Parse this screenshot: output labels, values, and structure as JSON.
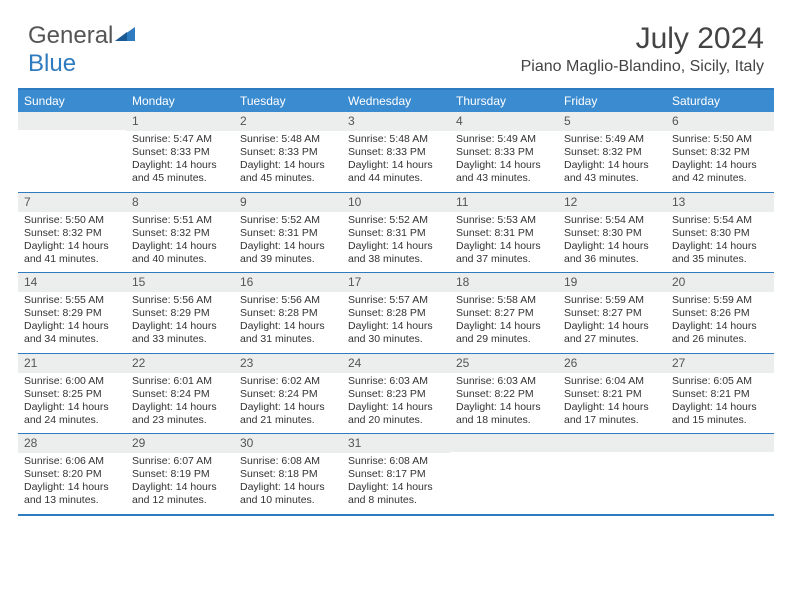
{
  "brand": {
    "part1": "General",
    "part2": "Blue"
  },
  "title": {
    "month": "July 2024",
    "location": "Piano Maglio-Blandino, Sicily, Italy"
  },
  "colors": {
    "accent": "#3b8bd0",
    "border": "#2f7bbf",
    "daybg": "#eceded"
  },
  "dayHeaders": [
    "Sunday",
    "Monday",
    "Tuesday",
    "Wednesday",
    "Thursday",
    "Friday",
    "Saturday"
  ],
  "weeks": [
    [
      {
        "n": "",
        "lines": []
      },
      {
        "n": "1",
        "lines": [
          "Sunrise: 5:47 AM",
          "Sunset: 8:33 PM",
          "Daylight: 14 hours",
          "and 45 minutes."
        ]
      },
      {
        "n": "2",
        "lines": [
          "Sunrise: 5:48 AM",
          "Sunset: 8:33 PM",
          "Daylight: 14 hours",
          "and 45 minutes."
        ]
      },
      {
        "n": "3",
        "lines": [
          "Sunrise: 5:48 AM",
          "Sunset: 8:33 PM",
          "Daylight: 14 hours",
          "and 44 minutes."
        ]
      },
      {
        "n": "4",
        "lines": [
          "Sunrise: 5:49 AM",
          "Sunset: 8:33 PM",
          "Daylight: 14 hours",
          "and 43 minutes."
        ]
      },
      {
        "n": "5",
        "lines": [
          "Sunrise: 5:49 AM",
          "Sunset: 8:32 PM",
          "Daylight: 14 hours",
          "and 43 minutes."
        ]
      },
      {
        "n": "6",
        "lines": [
          "Sunrise: 5:50 AM",
          "Sunset: 8:32 PM",
          "Daylight: 14 hours",
          "and 42 minutes."
        ]
      }
    ],
    [
      {
        "n": "7",
        "lines": [
          "Sunrise: 5:50 AM",
          "Sunset: 8:32 PM",
          "Daylight: 14 hours",
          "and 41 minutes."
        ]
      },
      {
        "n": "8",
        "lines": [
          "Sunrise: 5:51 AM",
          "Sunset: 8:32 PM",
          "Daylight: 14 hours",
          "and 40 minutes."
        ]
      },
      {
        "n": "9",
        "lines": [
          "Sunrise: 5:52 AM",
          "Sunset: 8:31 PM",
          "Daylight: 14 hours",
          "and 39 minutes."
        ]
      },
      {
        "n": "10",
        "lines": [
          "Sunrise: 5:52 AM",
          "Sunset: 8:31 PM",
          "Daylight: 14 hours",
          "and 38 minutes."
        ]
      },
      {
        "n": "11",
        "lines": [
          "Sunrise: 5:53 AM",
          "Sunset: 8:31 PM",
          "Daylight: 14 hours",
          "and 37 minutes."
        ]
      },
      {
        "n": "12",
        "lines": [
          "Sunrise: 5:54 AM",
          "Sunset: 8:30 PM",
          "Daylight: 14 hours",
          "and 36 minutes."
        ]
      },
      {
        "n": "13",
        "lines": [
          "Sunrise: 5:54 AM",
          "Sunset: 8:30 PM",
          "Daylight: 14 hours",
          "and 35 minutes."
        ]
      }
    ],
    [
      {
        "n": "14",
        "lines": [
          "Sunrise: 5:55 AM",
          "Sunset: 8:29 PM",
          "Daylight: 14 hours",
          "and 34 minutes."
        ]
      },
      {
        "n": "15",
        "lines": [
          "Sunrise: 5:56 AM",
          "Sunset: 8:29 PM",
          "Daylight: 14 hours",
          "and 33 minutes."
        ]
      },
      {
        "n": "16",
        "lines": [
          "Sunrise: 5:56 AM",
          "Sunset: 8:28 PM",
          "Daylight: 14 hours",
          "and 31 minutes."
        ]
      },
      {
        "n": "17",
        "lines": [
          "Sunrise: 5:57 AM",
          "Sunset: 8:28 PM",
          "Daylight: 14 hours",
          "and 30 minutes."
        ]
      },
      {
        "n": "18",
        "lines": [
          "Sunrise: 5:58 AM",
          "Sunset: 8:27 PM",
          "Daylight: 14 hours",
          "and 29 minutes."
        ]
      },
      {
        "n": "19",
        "lines": [
          "Sunrise: 5:59 AM",
          "Sunset: 8:27 PM",
          "Daylight: 14 hours",
          "and 27 minutes."
        ]
      },
      {
        "n": "20",
        "lines": [
          "Sunrise: 5:59 AM",
          "Sunset: 8:26 PM",
          "Daylight: 14 hours",
          "and 26 minutes."
        ]
      }
    ],
    [
      {
        "n": "21",
        "lines": [
          "Sunrise: 6:00 AM",
          "Sunset: 8:25 PM",
          "Daylight: 14 hours",
          "and 24 minutes."
        ]
      },
      {
        "n": "22",
        "lines": [
          "Sunrise: 6:01 AM",
          "Sunset: 8:24 PM",
          "Daylight: 14 hours",
          "and 23 minutes."
        ]
      },
      {
        "n": "23",
        "lines": [
          "Sunrise: 6:02 AM",
          "Sunset: 8:24 PM",
          "Daylight: 14 hours",
          "and 21 minutes."
        ]
      },
      {
        "n": "24",
        "lines": [
          "Sunrise: 6:03 AM",
          "Sunset: 8:23 PM",
          "Daylight: 14 hours",
          "and 20 minutes."
        ]
      },
      {
        "n": "25",
        "lines": [
          "Sunrise: 6:03 AM",
          "Sunset: 8:22 PM",
          "Daylight: 14 hours",
          "and 18 minutes."
        ]
      },
      {
        "n": "26",
        "lines": [
          "Sunrise: 6:04 AM",
          "Sunset: 8:21 PM",
          "Daylight: 14 hours",
          "and 17 minutes."
        ]
      },
      {
        "n": "27",
        "lines": [
          "Sunrise: 6:05 AM",
          "Sunset: 8:21 PM",
          "Daylight: 14 hours",
          "and 15 minutes."
        ]
      }
    ],
    [
      {
        "n": "28",
        "lines": [
          "Sunrise: 6:06 AM",
          "Sunset: 8:20 PM",
          "Daylight: 14 hours",
          "and 13 minutes."
        ]
      },
      {
        "n": "29",
        "lines": [
          "Sunrise: 6:07 AM",
          "Sunset: 8:19 PM",
          "Daylight: 14 hours",
          "and 12 minutes."
        ]
      },
      {
        "n": "30",
        "lines": [
          "Sunrise: 6:08 AM",
          "Sunset: 8:18 PM",
          "Daylight: 14 hours",
          "and 10 minutes."
        ]
      },
      {
        "n": "31",
        "lines": [
          "Sunrise: 6:08 AM",
          "Sunset: 8:17 PM",
          "Daylight: 14 hours",
          "and 8 minutes."
        ]
      },
      {
        "n": "",
        "lines": []
      },
      {
        "n": "",
        "lines": []
      },
      {
        "n": "",
        "lines": []
      }
    ]
  ]
}
